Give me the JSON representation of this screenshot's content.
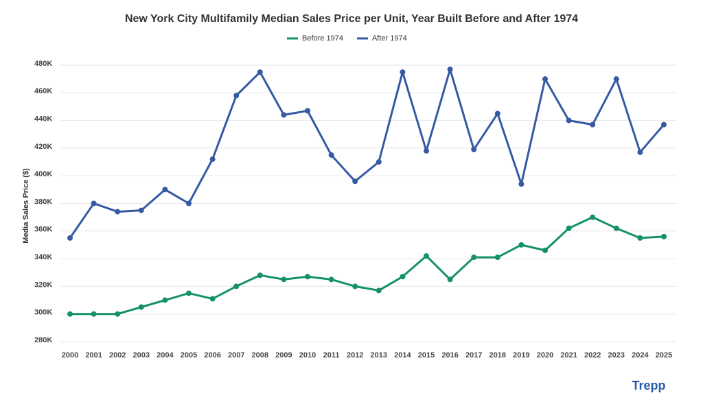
{
  "chart_data": {
    "type": "line",
    "title": "New York City Multifamily Median Sales Price per Unit, Year Built Before and After 1974",
    "y_label": "Media Sales Price ($)",
    "categories": [
      "2000",
      "2001",
      "2002",
      "2003",
      "2004",
      "2005",
      "2006",
      "2007",
      "2008",
      "2009",
      "2010",
      "2011",
      "2012",
      "2013",
      "2014",
      "2015",
      "2016",
      "2017",
      "2018",
      "2019",
      "2020",
      "2021",
      "2022",
      "2023",
      "2024",
      "2025"
    ],
    "series": [
      {
        "name": "Before 1974",
        "color": "#149167",
        "values": [
          300000,
          300000,
          300000,
          305000,
          310000,
          315000,
          311000,
          320000,
          328000,
          325000,
          327000,
          325000,
          320000,
          317000,
          327000,
          342000,
          325000,
          341000,
          341000,
          350000,
          346000,
          362000,
          370000,
          362000,
          355000,
          356000
        ]
      },
      {
        "name": "After 1974",
        "color": "#3559a3",
        "values": [
          355000,
          380000,
          374000,
          375000,
          390000,
          380000,
          412000,
          458000,
          475000,
          444000,
          447000,
          415000,
          396000,
          410000,
          475000,
          418000,
          477000,
          419000,
          445000,
          394000,
          470000,
          440000,
          437000,
          470000,
          417000,
          437000
        ]
      }
    ],
    "ylim": [
      280000,
      480000
    ],
    "yticks": [
      {
        "value": 280000,
        "label": "280K"
      },
      {
        "value": 300000,
        "label": "300K"
      },
      {
        "value": 320000,
        "label": "320K"
      },
      {
        "value": 340000,
        "label": "340K"
      },
      {
        "value": 360000,
        "label": "360K"
      },
      {
        "value": 380000,
        "label": "380K"
      },
      {
        "value": 400000,
        "label": "400K"
      },
      {
        "value": 420000,
        "label": "420K"
      },
      {
        "value": 440000,
        "label": "440K"
      },
      {
        "value": 460000,
        "label": "460K"
      },
      {
        "value": 480000,
        "label": "480K"
      }
    ],
    "grid": true,
    "legend": "top",
    "logo": "Trepp"
  }
}
